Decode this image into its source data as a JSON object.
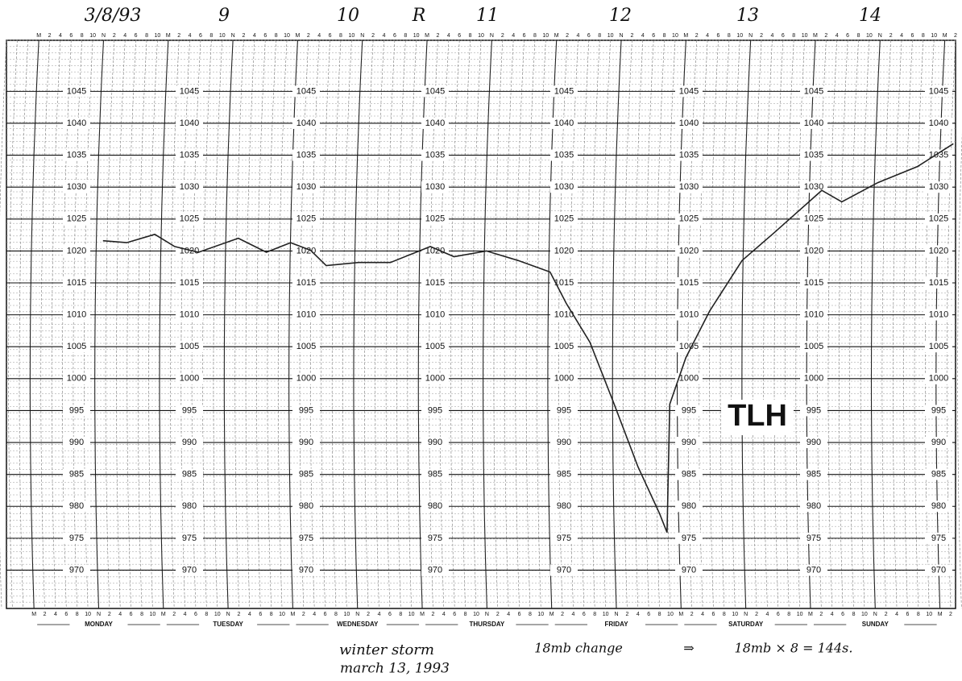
{
  "chart_data": {
    "type": "line",
    "dates": [
      "3/8/93",
      "9",
      "10",
      "R",
      "11",
      "12",
      "13",
      "14"
    ],
    "categories": [
      "MONDAY",
      "TUESDAY",
      "WEDNESDAY",
      "THURSDAY",
      "FRIDAY",
      "SATURDAY",
      "SUNDAY"
    ],
    "hour_labels": [
      "M",
      "2",
      "4",
      "6",
      "8",
      "10",
      "N",
      "2",
      "4",
      "6",
      "8",
      "10"
    ],
    "station": "TLH",
    "notes": [
      "winter storm",
      "march 13, 1993",
      "18mb change",
      "⇒",
      "18mb × 8 = 144s."
    ],
    "xlim": [
      -6,
      170
    ],
    "ylim": [
      964,
      1053
    ],
    "yticks": [
      970,
      975,
      980,
      985,
      990,
      995,
      1000,
      1005,
      1010,
      1015,
      1020,
      1025,
      1030,
      1035,
      1040,
      1045
    ],
    "grid": true,
    "series": [
      {
        "name": "TLH",
        "color": "#222",
        "x": [
          11.9,
          16.3,
          21.5,
          25.2,
          29.6,
          37,
          42.2,
          46.7,
          50.4,
          53.3,
          59.3,
          65.2,
          72.6,
          77,
          83,
          88.9,
          94.8,
          97.8,
          102.2,
          106.7,
          111.1,
          115.1,
          116.5,
          117,
          120,
          124.4,
          130.4,
          136.3,
          145.2,
          148.9,
          155.6,
          162.9,
          169.6
        ],
        "values": [
          1021.6,
          1021.3,
          1022.6,
          1020.7,
          1019.8,
          1022,
          1019.8,
          1021.3,
          1020.1,
          1017.7,
          1018.2,
          1018.2,
          1020.7,
          1019.1,
          1020,
          1018.5,
          1016.7,
          1011.8,
          1005.7,
          996,
          986.2,
          978.9,
          975.9,
          996,
          1003.3,
          1010.6,
          1018.5,
          1022.8,
          1029.5,
          1027.7,
          1030.7,
          1033.2,
          1036.8
        ]
      }
    ]
  }
}
